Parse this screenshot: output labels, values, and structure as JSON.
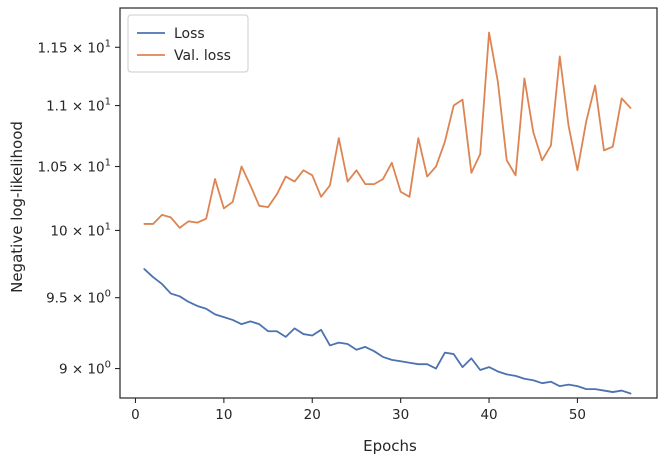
{
  "chart_data": {
    "type": "line",
    "xlabel": "Epochs",
    "ylabel": "Negative log-likelihood",
    "yscale": "log",
    "xlim": [
      -1.75,
      59.0
    ],
    "ylim": [
      8.8,
      11.85
    ],
    "xticks": [
      {
        "value": 0,
        "label": "0"
      },
      {
        "value": 10,
        "label": "10"
      },
      {
        "value": 20,
        "label": "20"
      },
      {
        "value": 30,
        "label": "30"
      },
      {
        "value": 40,
        "label": "40"
      },
      {
        "value": 50,
        "label": "50"
      }
    ],
    "yticks": [
      {
        "value": 9.0,
        "base": "9",
        "exp": "0"
      },
      {
        "value": 9.5,
        "base": "9.5",
        "exp": "0"
      },
      {
        "value": 10.0,
        "base": "10",
        "exp": "1"
      },
      {
        "value": 10.5,
        "base": "1.05",
        "exp": "1"
      },
      {
        "value": 11.0,
        "base": "1.1",
        "exp": "1"
      },
      {
        "value": 11.5,
        "base": "1.15",
        "exp": "1"
      }
    ],
    "grid": false,
    "legend_position": "top-left",
    "x": [
      1,
      2,
      3,
      4,
      5,
      6,
      7,
      8,
      9,
      10,
      11,
      12,
      13,
      14,
      15,
      16,
      17,
      18,
      19,
      20,
      21,
      22,
      23,
      24,
      25,
      26,
      27,
      28,
      29,
      30,
      31,
      32,
      33,
      34,
      35,
      36,
      37,
      38,
      39,
      40,
      41,
      42,
      43,
      44,
      45,
      46,
      47,
      48,
      49,
      50,
      51,
      52,
      53,
      54,
      55,
      56
    ],
    "series": [
      {
        "name": "Loss",
        "color": "#4c72b0",
        "values": [
          9.71,
          9.65,
          9.6,
          9.53,
          9.51,
          9.47,
          9.44,
          9.42,
          9.38,
          9.36,
          9.34,
          9.31,
          9.33,
          9.31,
          9.26,
          9.26,
          9.22,
          9.28,
          9.24,
          9.23,
          9.27,
          9.16,
          9.18,
          9.17,
          9.13,
          9.15,
          9.12,
          9.08,
          9.06,
          9.05,
          9.04,
          9.03,
          9.03,
          9.0,
          9.11,
          9.1,
          9.01,
          9.07,
          8.99,
          9.01,
          8.98,
          8.96,
          8.95,
          8.93,
          8.92,
          8.9,
          8.91,
          8.88,
          8.89,
          8.88,
          8.86,
          8.86,
          8.85,
          8.84,
          8.85,
          8.83
        ]
      },
      {
        "name": "Val. loss",
        "color": "#dd8452",
        "values": [
          10.05,
          10.05,
          10.12,
          10.1,
          10.02,
          10.07,
          10.06,
          10.09,
          10.4,
          10.17,
          10.22,
          10.5,
          10.35,
          10.19,
          10.18,
          10.28,
          10.42,
          10.38,
          10.47,
          10.43,
          10.26,
          10.35,
          10.73,
          10.38,
          10.47,
          10.36,
          10.36,
          10.4,
          10.53,
          10.3,
          10.26,
          10.73,
          10.42,
          10.5,
          10.7,
          11.0,
          11.05,
          10.45,
          10.6,
          11.63,
          11.2,
          10.55,
          10.43,
          11.23,
          10.78,
          10.55,
          10.67,
          11.42,
          10.83,
          10.47,
          10.87,
          11.17,
          10.63,
          10.66,
          11.06,
          10.98
        ]
      }
    ]
  }
}
